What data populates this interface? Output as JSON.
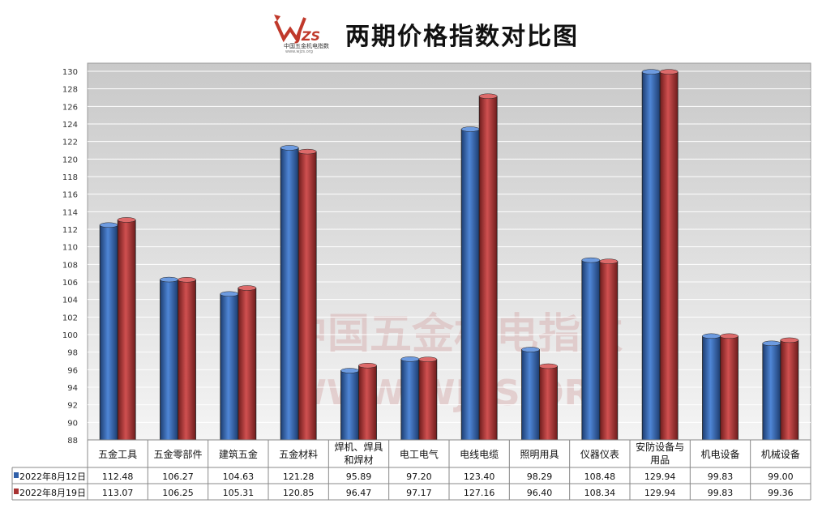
{
  "logo": {
    "text": "WJZS",
    "sub": "中国五金机电指数",
    "url": "www.wjzs.org"
  },
  "watermark": {
    "line1": "中国五金机电指数",
    "line2": "WWW.WJZS.ORG"
  },
  "chart_data": {
    "type": "bar",
    "title": "两期价格指数对比图",
    "categories": [
      "五金工具",
      "五金零部件",
      "建筑五金",
      "五金材料",
      "焊机、焊具和焊材",
      "电工电气",
      "电线电缆",
      "照明用具",
      "仪器仪表",
      "安防设备与用品",
      "机电设备",
      "机械设备"
    ],
    "category_lines": [
      [
        "五金工具"
      ],
      [
        "五金零部件"
      ],
      [
        "建筑五金"
      ],
      [
        "五金材料"
      ],
      [
        "焊机、焊具",
        "和焊材"
      ],
      [
        "电工电气"
      ],
      [
        "电线电缆"
      ],
      [
        "照明用具"
      ],
      [
        "仪器仪表"
      ],
      [
        "安防设备与",
        "用品"
      ],
      [
        "机电设备"
      ],
      [
        "机械设备"
      ]
    ],
    "series": [
      {
        "name": "2022年8月12日",
        "color": "#2f5fa8",
        "values": [
          112.48,
          106.27,
          104.63,
          121.28,
          95.89,
          97.2,
          123.4,
          98.29,
          108.48,
          129.94,
          99.83,
          99.0
        ],
        "labels": [
          "112.48",
          "106.27",
          "104.63",
          "121.28",
          "95.89",
          "97.20",
          "123.40",
          "98.29",
          "108.48",
          "129.94",
          "99.83",
          "99.00"
        ]
      },
      {
        "name": "2022年8月19日",
        "color": "#a83232",
        "values": [
          113.07,
          106.25,
          105.31,
          120.85,
          96.47,
          97.17,
          127.16,
          96.4,
          108.34,
          129.94,
          99.83,
          99.36
        ],
        "labels": [
          "113.07",
          "106.25",
          "105.31",
          "120.85",
          "96.47",
          "97.17",
          "127.16",
          "96.40",
          "108.34",
          "129.94",
          "99.83",
          "99.36"
        ]
      }
    ],
    "ylim": [
      88,
      130
    ],
    "yticks": [
      88,
      90,
      92,
      94,
      96,
      98,
      100,
      102,
      104,
      106,
      108,
      110,
      112,
      114,
      116,
      118,
      120,
      122,
      124,
      126,
      128,
      130
    ],
    "grid": true,
    "legend": "data-table"
  }
}
